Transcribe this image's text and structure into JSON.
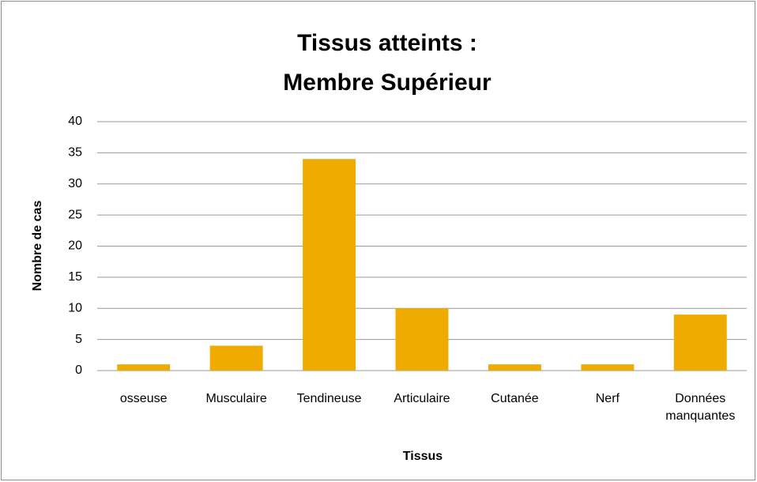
{
  "chart_data": {
    "type": "bar",
    "title": [
      "Tissus atteints :",
      "Membre Supérieur"
    ],
    "x_label": "Tissus",
    "y_label": "Nombre de cas",
    "categories": [
      "osseuse",
      "Musculaire",
      "Tendineuse",
      "Articulaire",
      "Cutanée",
      "Nerf",
      "Données manquantes"
    ],
    "values": [
      1,
      4,
      34,
      10,
      1,
      1,
      9
    ],
    "color": "#f0ab00",
    "ylim": [
      0,
      40
    ],
    "yticks": [
      0,
      5,
      10,
      15,
      20,
      25,
      30,
      35,
      40
    ],
    "grid": true
  }
}
